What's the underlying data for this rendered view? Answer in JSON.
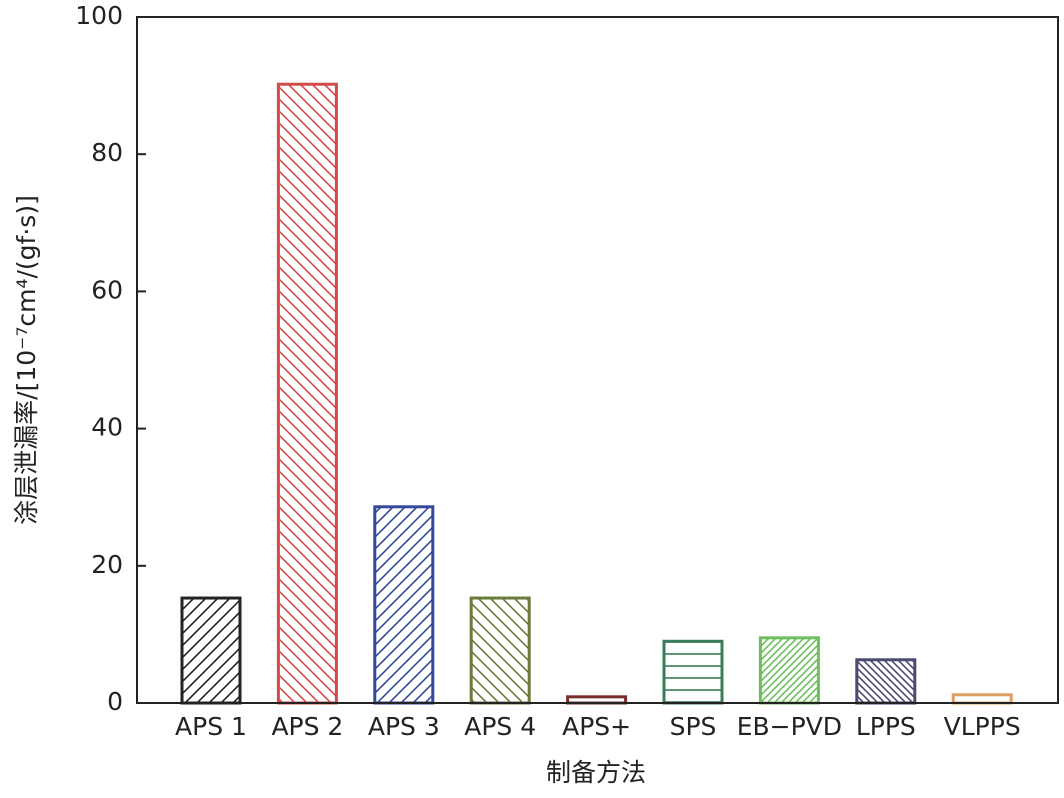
{
  "chart_data": {
    "type": "bar",
    "xlabel": "制备方法",
    "ylabel": "涂层泄漏率/[10⁻⁷cm⁴/(gf·s)]",
    "categories": [
      "APS 1",
      "APS 2",
      "APS 3",
      "APS 4",
      "APS+",
      "SPS",
      "EB−PVD",
      "LPPS",
      "VLPPS"
    ],
    "values": [
      15.3,
      90.2,
      28.6,
      15.3,
      0.9,
      9.0,
      9.5,
      6.3,
      1.2
    ],
    "colors": [
      "#232323",
      "#d24b4b",
      "#34499a",
      "#6a7b3c",
      "#7a2b2b",
      "#3b7c58",
      "#6fc05c",
      "#4a4a72",
      "#d9a061"
    ],
    "hatches": [
      "/",
      "\\",
      "/",
      "\\",
      "",
      "-",
      "//",
      "\\\\",
      ""
    ],
    "ylim": [
      0,
      100
    ],
    "yticks": [
      0,
      20,
      40,
      60,
      80,
      100
    ]
  }
}
